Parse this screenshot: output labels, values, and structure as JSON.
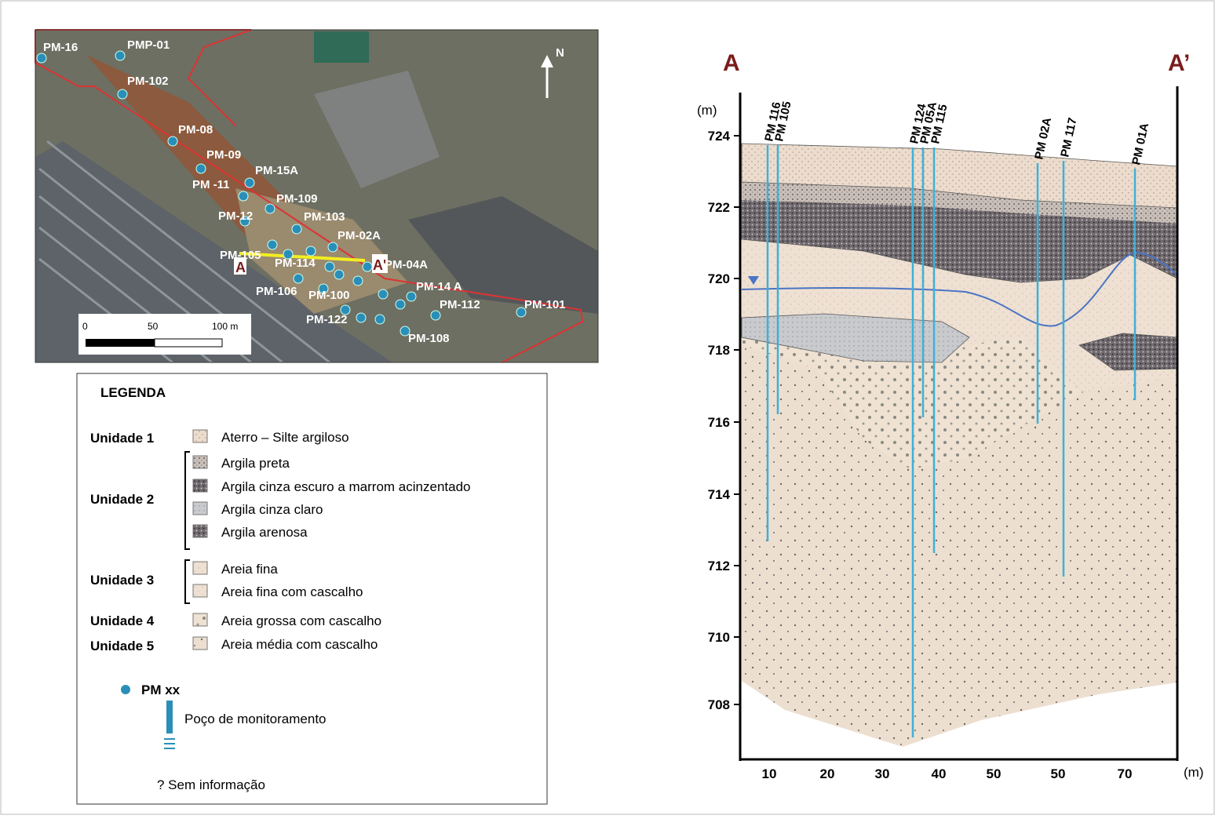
{
  "map": {
    "wells": [
      "PM-16",
      "PMP-01",
      "PM-102",
      "PM-08",
      "PM-09",
      "PM -11",
      "PM-15A",
      "PM-109",
      "PM-12",
      "PM-103",
      "PM-02A",
      "PM-105",
      "PM-114",
      "PM-04A",
      "PM-106",
      "PM-100",
      "PM-14 A",
      "PM-112",
      "PM-101",
      "PM-122",
      "PM-108"
    ],
    "north": "N",
    "section_start": "A",
    "section_end": "A'",
    "scale_labels": [
      "0",
      "50",
      "100 m"
    ]
  },
  "legend": {
    "title": "LEGENDA",
    "units": [
      {
        "label": "Unidade 1",
        "items": [
          "Aterro – Silte argiloso"
        ]
      },
      {
        "label": "Unidade 2",
        "items": [
          "Argila preta",
          "Argila cinza escuro a marrom acinzentado",
          "Argila cinza claro",
          "Argila arenosa"
        ]
      },
      {
        "label": "Unidade 3",
        "items": [
          "Areia fina",
          "Areia fina com cascalho"
        ]
      },
      {
        "label": "Unidade 4",
        "items": [
          "Areia grossa com cascalho"
        ]
      },
      {
        "label": "Unidade 5",
        "items": [
          "Areia média com cascalho"
        ]
      }
    ],
    "well_symbol": "PM xx",
    "well_description": "Poço de monitoramento",
    "no_information": "? Sem informação"
  },
  "section": {
    "start": "A",
    "end": "A’",
    "y_unit": "(m)",
    "x_unit": "(m)",
    "y_ticks": [
      "724",
      "722",
      "720",
      "718",
      "716",
      "714",
      "712",
      "710",
      "708"
    ],
    "x_ticks": [
      "10",
      "20",
      "30",
      "40",
      "50",
      "50",
      "70"
    ],
    "wells": [
      "PM 116",
      "PM 105",
      "PM 124",
      "PM 05A",
      "PM 115",
      "PM 02A",
      "PM 117",
      "PM 01A"
    ]
  }
}
